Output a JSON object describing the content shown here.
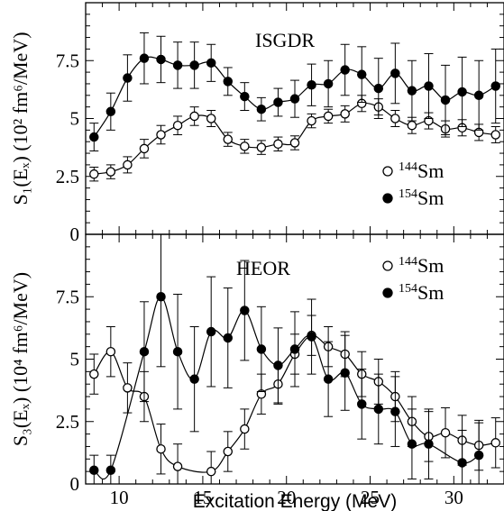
{
  "chart_data": [
    {
      "type": "scatter",
      "panel": "top",
      "title": "ISGDR",
      "ylabel": "S₁(Eₓ) (10² fm⁶/MeV)",
      "xlabel": "Excitation Energy (MeV)",
      "xlim": [
        8,
        33
      ],
      "ylim": [
        0,
        10
      ],
      "y_ticks": [
        "0",
        "2.5",
        "5",
        "7.5"
      ],
      "x_ticks": [
        "10",
        "15",
        "20",
        "25",
        "30"
      ],
      "legend_position": "lower-right",
      "series": [
        {
          "name": "144Sm",
          "marker": "open-circle",
          "points": [
            {
              "x": 8.5,
              "y": 2.6,
              "err": 0.3
            },
            {
              "x": 9.5,
              "y": 2.7,
              "err": 0.3
            },
            {
              "x": 10.5,
              "y": 3.0,
              "err": 0.35
            },
            {
              "x": 11.5,
              "y": 3.7,
              "err": 0.4
            },
            {
              "x": 12.5,
              "y": 4.3,
              "err": 0.4
            },
            {
              "x": 13.5,
              "y": 4.7,
              "err": 0.4
            },
            {
              "x": 14.5,
              "y": 5.1,
              "err": 0.4
            },
            {
              "x": 15.5,
              "y": 5.0,
              "err": 0.35
            },
            {
              "x": 16.5,
              "y": 4.1,
              "err": 0.3
            },
            {
              "x": 17.5,
              "y": 3.8,
              "err": 0.3
            },
            {
              "x": 18.5,
              "y": 3.75,
              "err": 0.3
            },
            {
              "x": 19.5,
              "y": 3.9,
              "err": 0.3
            },
            {
              "x": 20.5,
              "y": 3.95,
              "err": 0.3
            },
            {
              "x": 21.5,
              "y": 4.9,
              "err": 0.3
            },
            {
              "x": 22.5,
              "y": 5.1,
              "err": 0.3
            },
            {
              "x": 23.5,
              "y": 5.2,
              "err": 0.35
            },
            {
              "x": 24.5,
              "y": 5.65,
              "err": 0.35
            },
            {
              "x": 25.5,
              "y": 5.5,
              "err": 0.35
            },
            {
              "x": 26.5,
              "y": 5.0,
              "err": 0.35
            },
            {
              "x": 27.5,
              "y": 4.7,
              "err": 0.35
            },
            {
              "x": 28.5,
              "y": 4.9,
              "err": 0.35
            },
            {
              "x": 29.5,
              "y": 4.55,
              "err": 0.35
            },
            {
              "x": 30.5,
              "y": 4.6,
              "err": 0.35
            },
            {
              "x": 31.5,
              "y": 4.4,
              "err": 0.35
            },
            {
              "x": 32.5,
              "y": 4.3,
              "err": 0.35
            }
          ]
        },
        {
          "name": "154Sm",
          "marker": "filled-circle",
          "points": [
            {
              "x": 8.5,
              "y": 4.2,
              "err": 0.6
            },
            {
              "x": 9.5,
              "y": 5.3,
              "err": 0.8
            },
            {
              "x": 10.5,
              "y": 6.75,
              "err": 1.0
            },
            {
              "x": 11.5,
              "y": 7.6,
              "err": 1.1
            },
            {
              "x": 12.5,
              "y": 7.55,
              "err": 1.0
            },
            {
              "x": 13.5,
              "y": 7.3,
              "err": 1.0
            },
            {
              "x": 14.5,
              "y": 7.3,
              "err": 1.0
            },
            {
              "x": 15.5,
              "y": 7.4,
              "err": 0.8
            },
            {
              "x": 16.5,
              "y": 6.6,
              "err": 0.6
            },
            {
              "x": 17.5,
              "y": 5.95,
              "err": 0.6
            },
            {
              "x": 18.5,
              "y": 5.4,
              "err": 0.5
            },
            {
              "x": 19.5,
              "y": 5.7,
              "err": 0.6
            },
            {
              "x": 20.5,
              "y": 5.85,
              "err": 0.8
            },
            {
              "x": 21.5,
              "y": 6.45,
              "err": 0.9
            },
            {
              "x": 22.5,
              "y": 6.5,
              "err": 1.0
            },
            {
              "x": 23.5,
              "y": 7.1,
              "err": 1.1
            },
            {
              "x": 24.5,
              "y": 6.9,
              "err": 1.2
            },
            {
              "x": 25.5,
              "y": 6.3,
              "err": 1.3
            },
            {
              "x": 26.5,
              "y": 6.95,
              "err": 1.3
            },
            {
              "x": 27.5,
              "y": 6.2,
              "err": 1.3
            },
            {
              "x": 28.5,
              "y": 6.4,
              "err": 1.4
            },
            {
              "x": 29.5,
              "y": 5.8,
              "err": 1.5
            },
            {
              "x": 30.5,
              "y": 6.15,
              "err": 1.5
            },
            {
              "x": 31.5,
              "y": 6.0,
              "err": 1.5
            },
            {
              "x": 32.5,
              "y": 6.4,
              "err": 1.6
            }
          ]
        }
      ]
    },
    {
      "type": "scatter",
      "panel": "bottom",
      "title": "HEOR",
      "ylabel": "S₃(Eₓ) (10⁴ fm⁶/MeV)",
      "xlabel": "Excitation Energy (MeV)",
      "xlim": [
        8,
        33
      ],
      "ylim": [
        0,
        10
      ],
      "y_ticks": [
        "0",
        "2.5",
        "5",
        "7.5"
      ],
      "x_ticks": [
        "10",
        "15",
        "20",
        "25",
        "30"
      ],
      "legend_position": "top-right",
      "series": [
        {
          "name": "144Sm",
          "marker": "open-circle",
          "points": [
            {
              "x": 8.5,
              "y": 4.4,
              "err": 0.8
            },
            {
              "x": 9.5,
              "y": 5.3,
              "err": 1.0
            },
            {
              "x": 10.5,
              "y": 3.85,
              "err": 1.0
            },
            {
              "x": 11.5,
              "y": 3.5,
              "err": 1.0
            },
            {
              "x": 12.5,
              "y": 1.4,
              "err": 1.0
            },
            {
              "x": 13.5,
              "y": 0.7,
              "err": 0.9
            },
            {
              "x": 15.5,
              "y": 0.5,
              "err": 0.8
            },
            {
              "x": 16.5,
              "y": 1.3,
              "err": 0.8
            },
            {
              "x": 17.5,
              "y": 2.2,
              "err": 0.8
            },
            {
              "x": 18.5,
              "y": 3.6,
              "err": 0.8
            },
            {
              "x": 19.5,
              "y": 4.0,
              "err": 0.8
            },
            {
              "x": 20.5,
              "y": 5.2,
              "err": 0.8
            },
            {
              "x": 21.5,
              "y": 5.95,
              "err": 0.8
            },
            {
              "x": 22.5,
              "y": 5.5,
              "err": 0.8
            },
            {
              "x": 23.5,
              "y": 5.2,
              "err": 0.9
            },
            {
              "x": 24.5,
              "y": 4.4,
              "err": 0.9
            },
            {
              "x": 25.5,
              "y": 4.1,
              "err": 0.9
            },
            {
              "x": 26.5,
              "y": 3.5,
              "err": 1.0
            },
            {
              "x": 27.5,
              "y": 2.5,
              "err": 1.0
            },
            {
              "x": 28.5,
              "y": 1.9,
              "err": 1.0
            },
            {
              "x": 29.5,
              "y": 2.05,
              "err": 1.0
            },
            {
              "x": 30.5,
              "y": 1.75,
              "err": 1.0
            },
            {
              "x": 31.5,
              "y": 1.55,
              "err": 1.0
            },
            {
              "x": 32.5,
              "y": 1.65,
              "err": 1.0
            }
          ]
        },
        {
          "name": "154Sm",
          "marker": "filled-circle",
          "points": [
            {
              "x": 8.5,
              "y": 0.55,
              "err": 0.6
            },
            {
              "x": 9.5,
              "y": 0.55,
              "err": 0.6
            },
            {
              "x": 11.5,
              "y": 5.3,
              "err": 2.0
            },
            {
              "x": 12.5,
              "y": 7.5,
              "err": 2.8
            },
            {
              "x": 13.5,
              "y": 5.3,
              "err": 2.3
            },
            {
              "x": 14.5,
              "y": 4.2,
              "err": 2.1
            },
            {
              "x": 15.5,
              "y": 6.1,
              "err": 2.2
            },
            {
              "x": 16.5,
              "y": 5.85,
              "err": 2.0
            },
            {
              "x": 17.5,
              "y": 6.95,
              "err": 2.0
            },
            {
              "x": 18.5,
              "y": 5.4,
              "err": 1.7
            },
            {
              "x": 19.5,
              "y": 4.75,
              "err": 1.5
            },
            {
              "x": 20.5,
              "y": 5.4,
              "err": 1.5
            },
            {
              "x": 21.5,
              "y": 5.9,
              "err": 1.5
            },
            {
              "x": 22.5,
              "y": 4.2,
              "err": 1.5
            },
            {
              "x": 23.5,
              "y": 4.45,
              "err": 1.5
            },
            {
              "x": 24.5,
              "y": 3.2,
              "err": 1.4
            },
            {
              "x": 25.5,
              "y": 3.0,
              "err": 1.4
            },
            {
              "x": 26.5,
              "y": 2.9,
              "err": 1.4
            },
            {
              "x": 27.5,
              "y": 1.6,
              "err": 1.4
            },
            {
              "x": 28.5,
              "y": 1.6,
              "err": 1.4
            },
            {
              "x": 30.5,
              "y": 0.85,
              "err": 1.3
            },
            {
              "x": 31.5,
              "y": 1.15,
              "err": 1.3
            }
          ]
        }
      ]
    }
  ]
}
